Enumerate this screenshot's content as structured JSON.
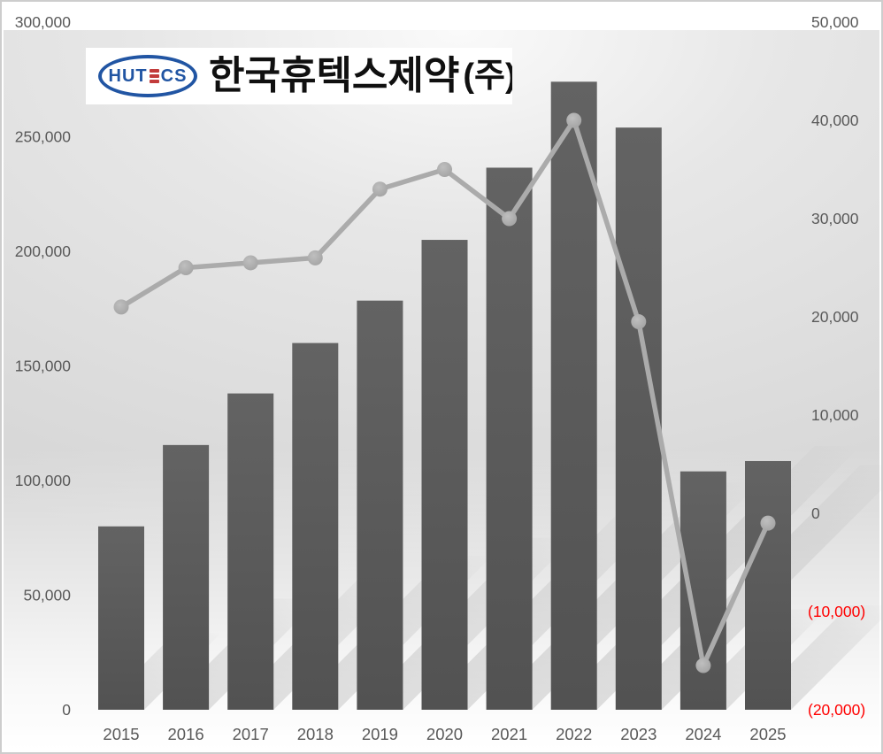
{
  "logo": {
    "badge_left": "HUT",
    "badge_right": "CS",
    "badge_full_name": "HUTECS",
    "company_name": "한국휴텍스제약",
    "company_suffix": "(주)",
    "badge_blue": "#2155a3",
    "badge_red": "#c23b3b"
  },
  "chart_data": {
    "type": "bar",
    "subtype": "combo-bar-line-dual-axis",
    "title": "",
    "xlabel": "",
    "ylabel_left": "",
    "ylabel_right": "",
    "grid": false,
    "legend_position": "none",
    "categories": [
      "2015",
      "2016",
      "2017",
      "2018",
      "2019",
      "2020",
      "2021",
      "2022",
      "2023",
      "2024",
      "2025"
    ],
    "series": [
      {
        "id": "columns-left-axis",
        "type": "bar",
        "axis": "left",
        "color": "#595959",
        "values": [
          80000,
          115500,
          138000,
          160000,
          178500,
          205000,
          236500,
          274000,
          254000,
          104000,
          108500
        ]
      },
      {
        "id": "line-right-axis",
        "type": "line",
        "axis": "right",
        "color": "#ababab",
        "marker_color": "#a6a6a6",
        "values": [
          21000,
          25000,
          25500,
          26000,
          33000,
          35000,
          30000,
          40000,
          19500,
          -15500,
          -1000
        ]
      }
    ],
    "left_axis": {
      "min": 0,
      "max": 300000,
      "step": 50000,
      "tick_labels": [
        "0",
        "50,000",
        "100,000",
        "150,000",
        "200,000",
        "250,000",
        "300,000"
      ],
      "label_color": "#595959"
    },
    "right_axis": {
      "min": -20000,
      "max": 50000,
      "step": 10000,
      "tick_labels": [
        "(20,000)",
        "(10,000)",
        "0",
        "10,000",
        "20,000",
        "30,000",
        "40,000",
        "50,000"
      ],
      "label_color": "#595959",
      "negative_color": "#ff0000",
      "negative_format": "parentheses"
    }
  }
}
